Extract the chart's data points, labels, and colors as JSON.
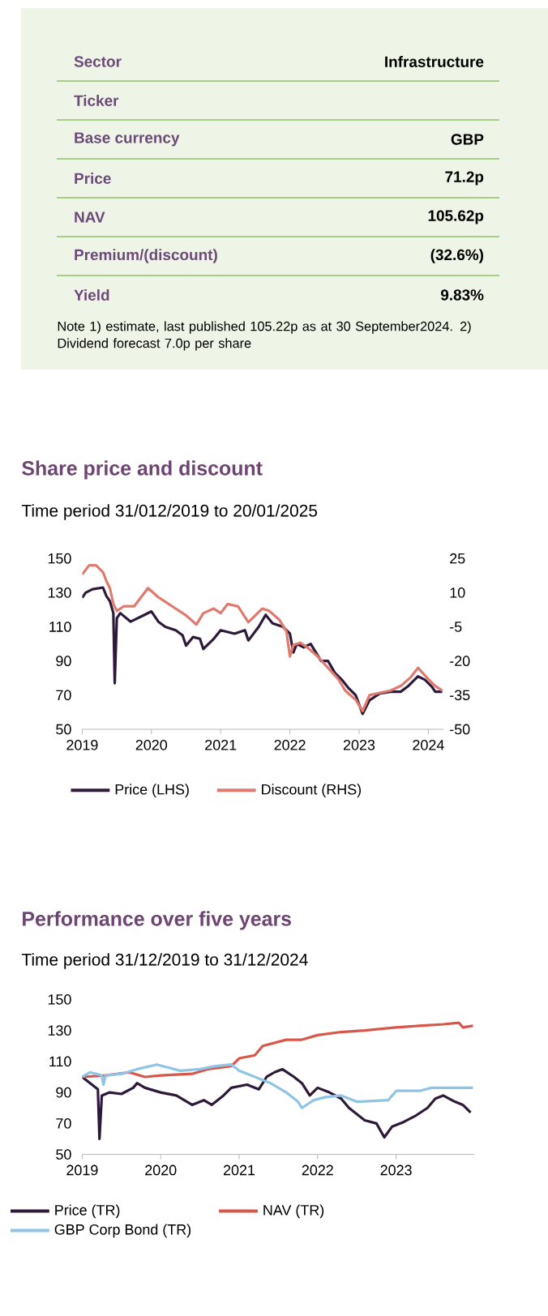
{
  "chart_data": [
    {
      "type": "other",
      "categories": [
        "Sector",
        "Ticker",
        "Base currency",
        "Price",
        "NAV",
        "Premium/(discount)",
        "Yield"
      ],
      "value_labels": [
        "Infrastructure",
        null,
        "GBP",
        "71.2p",
        "105.62p",
        "(32.6%)",
        "9.83%"
      ],
      "annotations": [
        "Note 1) estimate, last published 105.22p as at 30 September2024. 2) Dividend forecast 7.0p per share"
      ]
    },
    {
      "type": "line",
      "title": "Share price and discount",
      "subtitle": "Time period 31/012/2019 to 20/01/2025",
      "xlim": [
        2019,
        2024.22
      ],
      "xticks": [
        2019,
        2020,
        2021,
        2022,
        2023,
        2024
      ],
      "ylim": [
        50,
        150
      ],
      "yticks": [
        50,
        70,
        90,
        110,
        130,
        150
      ],
      "y2lim": [
        -50,
        25
      ],
      "y2ticks": [
        -50,
        -35,
        -20,
        -5,
        10,
        25
      ],
      "legend": "bottom",
      "line_style": "solid",
      "series": [
        {
          "name": "Price (LHS)",
          "color": "#2d1a3a",
          "x": [
            2019.0,
            2019.05,
            2019.15,
            2019.3,
            2019.35,
            2019.4,
            2019.45,
            2019.47,
            2019.5,
            2019.55,
            2019.7,
            2019.9,
            2020.0,
            2020.1,
            2020.2,
            2020.35,
            2020.45,
            2020.5,
            2020.6,
            2020.7,
            2020.75,
            2020.9,
            2021.0,
            2021.2,
            2021.35,
            2021.4,
            2021.55,
            2021.65,
            2021.75,
            2021.9,
            2022.0,
            2022.05,
            2022.1,
            2022.2,
            2022.3,
            2022.45,
            2022.55,
            2022.65,
            2022.75,
            2022.85,
            2022.95,
            2023.05,
            2023.15,
            2023.3,
            2023.45,
            2023.6,
            2023.7,
            2023.85,
            2023.95,
            2024.05,
            2024.1,
            2024.2
          ],
          "values": [
            127,
            130,
            132,
            133,
            128,
            125,
            118,
            77,
            115,
            118,
            113,
            117,
            119,
            113,
            110,
            108,
            105,
            99,
            104,
            103,
            97,
            103,
            108,
            106,
            108,
            102,
            110,
            117,
            112,
            110,
            106,
            95,
            100,
            98,
            100,
            90,
            90,
            83,
            79,
            74,
            70,
            59,
            67,
            71,
            72,
            72,
            75,
            81,
            79,
            75,
            72,
            72
          ]
        },
        {
          "name": "Discount (RHS)",
          "color": "#e07a6e",
          "axis": "y2",
          "x": [
            2019.0,
            2019.1,
            2019.2,
            2019.3,
            2019.35,
            2019.4,
            2019.45,
            2019.5,
            2019.6,
            2019.75,
            2019.85,
            2019.95,
            2020.1,
            2020.2,
            2020.35,
            2020.5,
            2020.65,
            2020.75,
            2020.9,
            2021.0,
            2021.1,
            2021.25,
            2021.4,
            2021.6,
            2021.7,
            2021.85,
            2021.95,
            2022.0,
            2022.05,
            2022.15,
            2022.25,
            2022.4,
            2022.55,
            2022.7,
            2022.8,
            2022.95,
            2023.05,
            2023.15,
            2023.3,
            2023.45,
            2023.6,
            2023.75,
            2023.85,
            2024.0,
            2024.1,
            2024.2
          ],
          "values": [
            18,
            22,
            22,
            19,
            15,
            12,
            5,
            2,
            4,
            4,
            8,
            12,
            8,
            6,
            3,
            0,
            -4,
            1,
            3,
            1,
            5,
            4,
            -3,
            3,
            2,
            -2,
            -7,
            -18,
            -13,
            -12,
            -14,
            -18,
            -23,
            -28,
            -33,
            -37,
            -42,
            -35,
            -34,
            -33,
            -31,
            -27,
            -23,
            -28,
            -31,
            -33
          ]
        }
      ]
    },
    {
      "type": "line",
      "title": "Performance over five years",
      "subtitle": "Time period 31/12/2019 to 31/12/2024",
      "xlim": [
        2019,
        2024
      ],
      "xticks": [
        2019,
        2020,
        2021,
        2022,
        2023
      ],
      "ylim": [
        50,
        150
      ],
      "yticks": [
        50,
        70,
        90,
        110,
        130,
        150
      ],
      "legend": "bottom",
      "line_style": "solid",
      "series": [
        {
          "name": "Price (TR)",
          "color": "#2d1a3a",
          "x": [
            2019.0,
            2019.1,
            2019.2,
            2019.22,
            2019.25,
            2019.35,
            2019.5,
            2019.65,
            2019.7,
            2019.8,
            2020.0,
            2020.2,
            2020.3,
            2020.4,
            2020.55,
            2020.65,
            2020.8,
            2020.9,
            2021.1,
            2021.25,
            2021.35,
            2021.45,
            2021.55,
            2021.7,
            2021.8,
            2021.9,
            2022.0,
            2022.15,
            2022.3,
            2022.4,
            2022.5,
            2022.6,
            2022.75,
            2022.85,
            2022.95,
            2023.1,
            2023.25,
            2023.4,
            2023.5,
            2023.6,
            2023.75,
            2023.85,
            2023.95
          ],
          "values": [
            100,
            96,
            92,
            60,
            88,
            90,
            89,
            93,
            96,
            93,
            90,
            88,
            85,
            82,
            85,
            82,
            88,
            93,
            95,
            92,
            100,
            103,
            105,
            100,
            96,
            88,
            93,
            90,
            86,
            80,
            76,
            72,
            70,
            61,
            68,
            71,
            75,
            80,
            86,
            88,
            84,
            82,
            77
          ]
        },
        {
          "name": "NAV (TR)",
          "color": "#d9574a",
          "x": [
            2019.0,
            2019.3,
            2019.6,
            2019.8,
            2020.0,
            2020.4,
            2020.6,
            2020.9,
            2021.0,
            2021.2,
            2021.3,
            2021.6,
            2021.8,
            2022.0,
            2022.3,
            2022.6,
            2022.8,
            2023.0,
            2023.3,
            2023.6,
            2023.8,
            2023.85,
            2023.98
          ],
          "values": [
            100,
            101,
            103,
            100,
            101,
            102,
            105,
            107,
            112,
            114,
            120,
            124,
            124,
            127,
            129,
            130,
            131,
            132,
            133,
            134,
            135,
            132,
            133
          ]
        },
        {
          "name": "GBP Corp Bond (TR)",
          "color": "#8ec5e6",
          "x": [
            2019.0,
            2019.1,
            2019.25,
            2019.27,
            2019.3,
            2019.5,
            2019.7,
            2019.95,
            2020.1,
            2020.25,
            2020.5,
            2020.7,
            2020.9,
            2021.0,
            2021.2,
            2021.4,
            2021.6,
            2021.75,
            2021.8,
            2021.95,
            2022.1,
            2022.3,
            2022.5,
            2022.9,
            2023.0,
            2023.3,
            2023.45,
            2023.98
          ],
          "values": [
            100,
            103,
            101,
            95,
            101,
            102,
            105,
            108,
            106,
            104,
            105,
            107,
            108,
            104,
            100,
            96,
            90,
            84,
            80,
            85,
            87,
            88,
            84,
            85,
            91,
            91,
            93,
            93
          ]
        }
      ]
    }
  ]
}
